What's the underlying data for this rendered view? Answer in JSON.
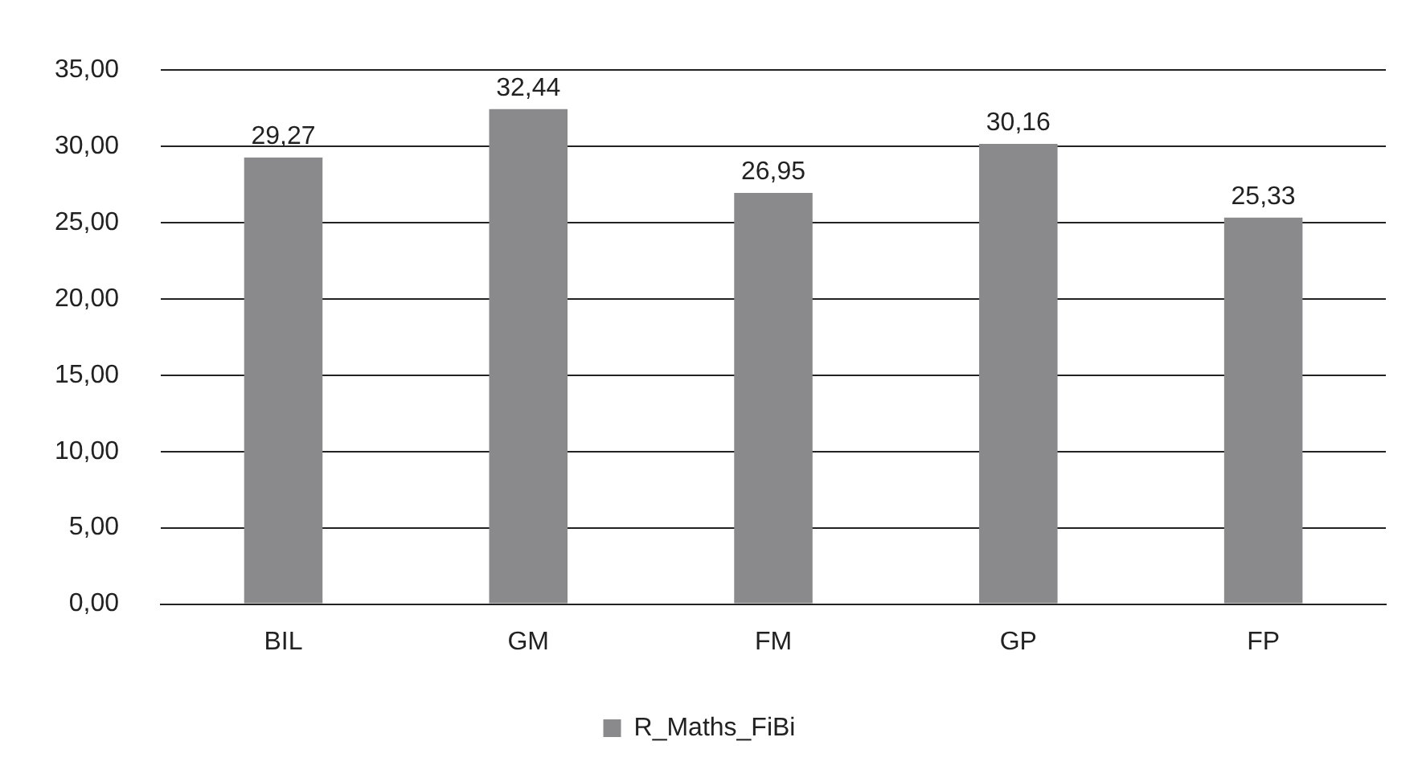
{
  "chart_data": {
    "type": "bar",
    "categories": [
      "BIL",
      "GM",
      "FM",
      "GP",
      "FP"
    ],
    "series": [
      {
        "name": "R_Maths_FiBi",
        "color": "#8a8a8c",
        "values": [
          29.27,
          32.44,
          26.95,
          30.16,
          25.33
        ]
      }
    ],
    "value_labels": [
      "29,27",
      "32,44",
      "26,95",
      "30,16",
      "25,33"
    ],
    "ylim": [
      0,
      35
    ],
    "yticks": [
      {
        "value": 0,
        "label": "0,00"
      },
      {
        "value": 5,
        "label": "5,00"
      },
      {
        "value": 10,
        "label": "10,00"
      },
      {
        "value": 15,
        "label": "15,00"
      },
      {
        "value": 20,
        "label": "20,00"
      },
      {
        "value": 25,
        "label": "25,00"
      },
      {
        "value": 30,
        "label": "30,00"
      },
      {
        "value": 35,
        "label": "35,00"
      }
    ],
    "grid": "y",
    "legend": "bottom"
  }
}
